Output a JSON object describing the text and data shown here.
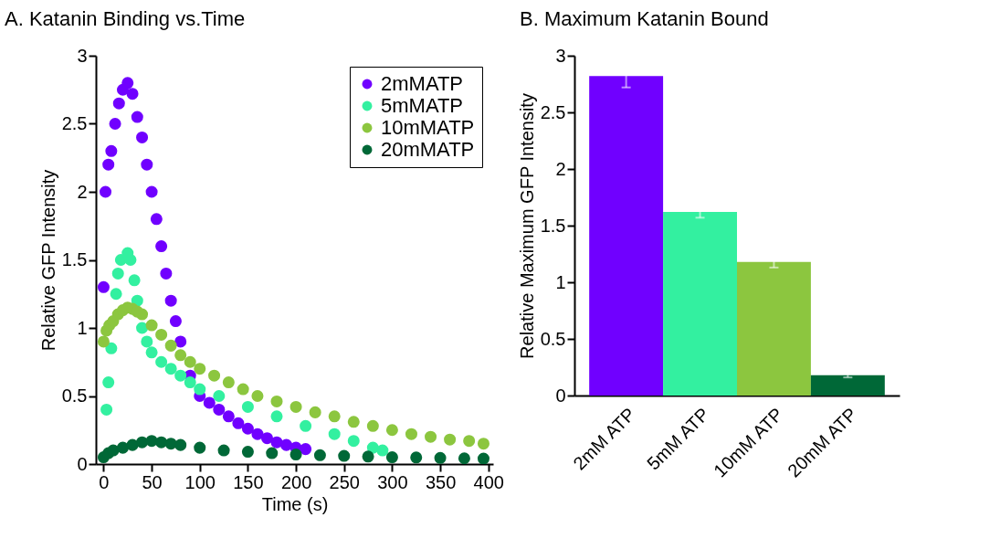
{
  "chart_data": [
    {
      "type": "scatter",
      "title": "A. Katanin Binding vs.Time",
      "xlabel": "Time (s)",
      "ylabel": "Relative GFP Intensity",
      "xlim": [
        -8,
        405
      ],
      "xticks": [
        0,
        50,
        100,
        150,
        200,
        250,
        300,
        350,
        400
      ],
      "ylim": [
        0,
        3
      ],
      "yticks": [
        0,
        0.5,
        1,
        1.5,
        2,
        2.5,
        3
      ],
      "legend": "top right",
      "marker": "circle",
      "series": [
        {
          "name": "2mMATP",
          "color": "#7000ff",
          "x": [
            0,
            2,
            5,
            8,
            12,
            16,
            20,
            25,
            30,
            35,
            40,
            45,
            50,
            55,
            60,
            65,
            70,
            75,
            80,
            90,
            100,
            110,
            120,
            130,
            140,
            150,
            160,
            170,
            180,
            190,
            200,
            210
          ],
          "values": [
            1.3,
            2.0,
            2.2,
            2.3,
            2.5,
            2.65,
            2.75,
            2.8,
            2.72,
            2.55,
            2.4,
            2.2,
            2.0,
            1.8,
            1.6,
            1.4,
            1.2,
            1.05,
            0.9,
            0.65,
            0.5,
            0.45,
            0.4,
            0.35,
            0.3,
            0.26,
            0.22,
            0.19,
            0.16,
            0.14,
            0.12,
            0.11
          ]
        },
        {
          "name": "5mMATP",
          "color": "#33f0a0",
          "x": [
            3,
            5,
            8,
            13,
            15,
            18,
            25,
            28,
            32,
            35,
            40,
            45,
            50,
            60,
            70,
            80,
            90,
            100,
            120,
            150,
            180,
            210,
            240,
            260,
            280,
            290
          ],
          "values": [
            0.4,
            0.6,
            0.85,
            1.25,
            1.4,
            1.5,
            1.55,
            1.5,
            1.35,
            1.2,
            1.0,
            0.9,
            0.82,
            0.75,
            0.7,
            0.65,
            0.6,
            0.55,
            0.5,
            0.42,
            0.35,
            0.28,
            0.22,
            0.17,
            0.12,
            0.1
          ]
        },
        {
          "name": "10mMATP",
          "color": "#8cc63f",
          "x": [
            0,
            3,
            6,
            10,
            15,
            20,
            25,
            30,
            35,
            40,
            50,
            60,
            70,
            80,
            90,
            100,
            115,
            130,
            145,
            160,
            180,
            200,
            220,
            240,
            260,
            280,
            300,
            320,
            340,
            360,
            380,
            395
          ],
          "values": [
            0.9,
            0.98,
            1.02,
            1.05,
            1.1,
            1.13,
            1.15,
            1.14,
            1.12,
            1.1,
            1.02,
            0.95,
            0.87,
            0.8,
            0.75,
            0.7,
            0.65,
            0.6,
            0.55,
            0.5,
            0.46,
            0.42,
            0.38,
            0.35,
            0.31,
            0.28,
            0.25,
            0.22,
            0.2,
            0.18,
            0.17,
            0.15
          ]
        },
        {
          "name": "20mMATP",
          "color": "#006837",
          "x": [
            0,
            5,
            10,
            20,
            30,
            40,
            50,
            60,
            70,
            80,
            100,
            125,
            150,
            175,
            200,
            225,
            250,
            275,
            300,
            325,
            350,
            375,
            395
          ],
          "values": [
            0.05,
            0.08,
            0.1,
            0.12,
            0.14,
            0.16,
            0.17,
            0.16,
            0.15,
            0.14,
            0.12,
            0.1,
            0.09,
            0.08,
            0.07,
            0.065,
            0.06,
            0.055,
            0.05,
            0.048,
            0.045,
            0.042,
            0.04
          ]
        }
      ]
    },
    {
      "type": "bar",
      "title": "B. Maximum Katanin Bound",
      "ylabel": "Relative Maximum GFP Intensity",
      "categories": [
        "2mM ATP",
        "5mM ATP",
        "10mM ATP",
        "20mM ATP"
      ],
      "values": [
        2.82,
        1.62,
        1.18,
        0.18
      ],
      "errors": [
        0.1,
        0.05,
        0.05,
        0.02
      ],
      "colors": [
        "#7000ff",
        "#33f0a0",
        "#8cc63f",
        "#006837"
      ],
      "ylim": [
        0,
        3
      ],
      "yticks": [
        0,
        0.5,
        1,
        1.5,
        2,
        2.5,
        3
      ]
    }
  ]
}
